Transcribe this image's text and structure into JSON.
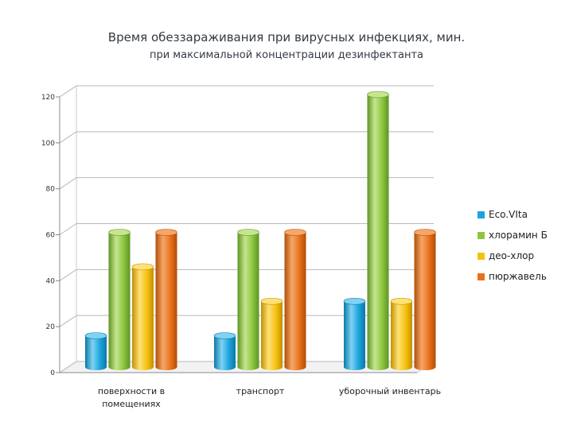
{
  "chart_data": {
    "type": "bar",
    "title": "Время обеззараживания при вирусных инфекциях, мин.",
    "subtitle": "при максимальной концентрации дезинфектанта",
    "categories": [
      [
        "поверхности в",
        "помещениях"
      ],
      [
        "транспорт"
      ],
      [
        "уборочный инвентарь"
      ]
    ],
    "series": [
      {
        "name": "Eco.VIta",
        "values": [
          15,
          15,
          30
        ],
        "color": "#1aa3dd",
        "dark": "#0d78a8",
        "light": "#7fd2f2"
      },
      {
        "name": "хлорамин Б",
        "values": [
          60,
          60,
          120
        ],
        "color": "#8cc63f",
        "dark": "#5d9424",
        "light": "#c6e58f"
      },
      {
        "name": "део-хлор",
        "values": [
          45,
          30,
          30
        ],
        "color": "#f6c10f",
        "dark": "#c48f00",
        "light": "#fde277"
      },
      {
        "name": "пюржавель",
        "values": [
          60,
          60,
          60
        ],
        "color": "#e8711b",
        "dark": "#b14e08",
        "light": "#f6a768"
      }
    ],
    "ylim": [
      0,
      120
    ],
    "yticks": [
      0,
      20,
      40,
      60,
      80,
      100,
      120
    ],
    "xlabel": "",
    "ylabel": "",
    "legend": "right",
    "grid": true
  }
}
